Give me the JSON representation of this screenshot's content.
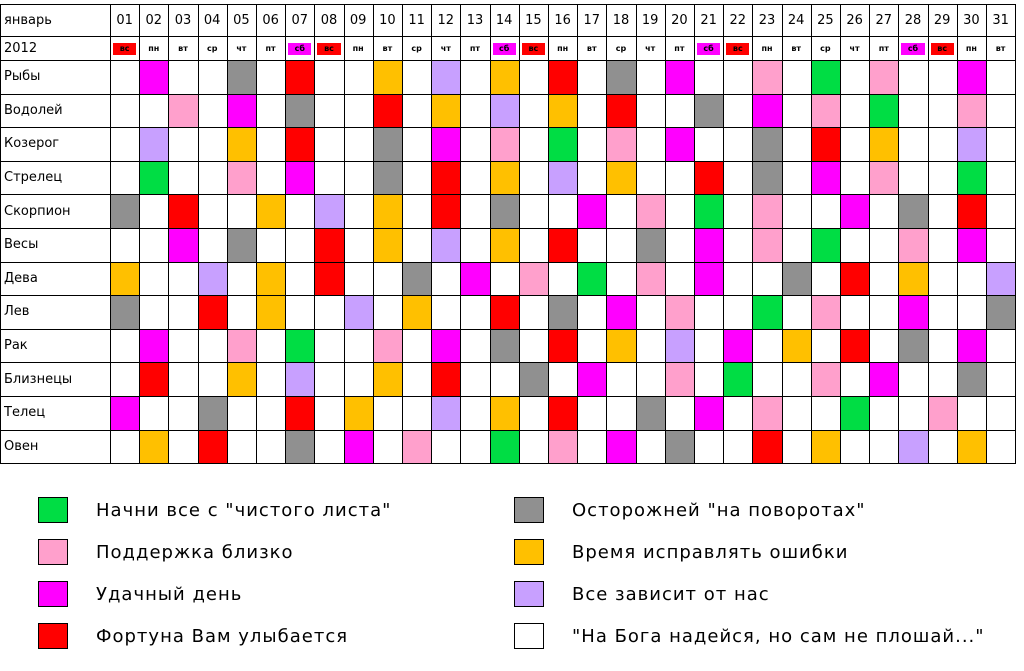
{
  "chart_data": {
    "type": "heatmap",
    "title": "",
    "month_label": "январь",
    "year_label": "2012",
    "days": [
      "01",
      "02",
      "03",
      "04",
      "05",
      "06",
      "07",
      "08",
      "09",
      "10",
      "11",
      "12",
      "13",
      "14",
      "15",
      "16",
      "17",
      "18",
      "19",
      "20",
      "21",
      "22",
      "23",
      "24",
      "25",
      "26",
      "27",
      "28",
      "29",
      "30",
      "31"
    ],
    "weekdays": [
      "вс",
      "пн",
      "вт",
      "ср",
      "чт",
      "пт",
      "сб",
      "вс",
      "пн",
      "вт",
      "ср",
      "чт",
      "пт",
      "сб",
      "вс",
      "пн",
      "вт",
      "ср",
      "чт",
      "пт",
      "сб",
      "вс",
      "пн",
      "вт",
      "ср",
      "чт",
      "пт",
      "сб",
      "вс",
      "пн",
      "вт"
    ],
    "weekday_colors": [
      "red",
      "white",
      "white",
      "white",
      "white",
      "white",
      "magenta",
      "red",
      "white",
      "white",
      "white",
      "white",
      "white",
      "magenta",
      "red",
      "white",
      "white",
      "white",
      "white",
      "white",
      "magenta",
      "red",
      "white",
      "white",
      "white",
      "white",
      "white",
      "magenta",
      "red",
      "white",
      "white"
    ],
    "signs": [
      "Рыбы",
      "Водолей",
      "Козерог",
      "Стрелец",
      "Скорпион",
      "Весы",
      "Дева",
      "Лев",
      "Рак",
      "Близнецы",
      "Телец",
      "Овен"
    ],
    "categories": {
      "G": {
        "label": "Начни все с \"чистого листа\"",
        "color": "#00dd44"
      },
      "P": {
        "label": "Поддержка близко",
        "color": "#ffa0cc"
      },
      "M": {
        "label": "Удачный день",
        "color": "#ff00ff"
      },
      "R": {
        "label": "Фортуна Вам улыбается",
        "color": "#ff0000"
      },
      "D": {
        "label": "Осторожней \"на поворотах\"",
        "color": "#909090"
      },
      "O": {
        "label": "Время исправлять ошибки",
        "color": "#ffc000"
      },
      "L": {
        "label": "Все зависит от нас",
        "color": "#c8a0ff"
      },
      "W": {
        "label": "\"На Бога надейся, но сам не плошай...\"",
        "color": "#ffffff"
      }
    },
    "legend_left": [
      "G",
      "P",
      "M",
      "R"
    ],
    "legend_right": [
      "D",
      "O",
      "L",
      "W"
    ],
    "rows": [
      "WMWWDWRWWOWLWOWRWDWMWWPWGWPWWMW",
      "WWPWMWDWWRWOWLWOWRWWDWMWPWGWWPW",
      "WLWWOWRWWDWMWPWGWPWMWWDWRWOWWLW",
      "WGWWPWMWWDWRWOWLWOWWRWDWMWPWWGW",
      "DWRWWOWLWOWRWDWWMWPWGWPWWMWDWRW",
      "WWMWDWWRWOWLWOWRWWDWMWPWGWWPWMW",
      "OWWLWOWRWWDWMWPWGWPWMWWDWRWOWWL",
      "DWWRWOWWLWOWWRWDWMWPWWGWPWWMWWD",
      "WMWWPWGWWPWMWDWRWOWLWMWOWRWDWMW",
      "WRWWOWLWWOWRWWDWMWWPWGWWPWMWWDW",
      "MWWDWWRWOWWLWOWRWWDWMWPWWGWWPWW",
      "WOWRWWDWMWPWWGWPWMWDWWRWOWWLWOW"
    ]
  }
}
